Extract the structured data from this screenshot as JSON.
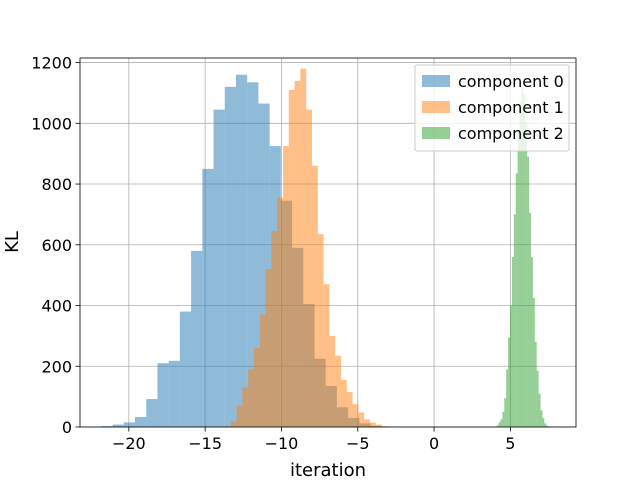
{
  "chart_data": {
    "type": "histogram",
    "xlabel": "iteration",
    "ylabel": "KL",
    "xlim": [
      -23.2,
      9.3
    ],
    "ylim": [
      0,
      1215
    ],
    "xticks": [
      -20,
      -15,
      -10,
      -5,
      0,
      5
    ],
    "yticks": [
      0,
      200,
      400,
      600,
      800,
      1000,
      1200
    ],
    "grid": true,
    "alpha": 0.5,
    "legend_position": "top-right",
    "series": [
      {
        "name": "component 0",
        "color": "#1f77b4",
        "bin_start": -21.8,
        "bin_width": 0.735,
        "counts": [
          3,
          8,
          15,
          33,
          92,
          210,
          218,
          380,
          580,
          850,
          1045,
          1120,
          1160,
          1135,
          1065,
          925,
          745,
          590,
          405,
          225,
          135,
          65,
          30,
          12,
          4
        ]
      },
      {
        "name": "component 1",
        "color": "#ff7f0e",
        "bin_start": -13.7,
        "bin_width": 0.38,
        "counts": [
          2,
          18,
          70,
          130,
          190,
          260,
          370,
          520,
          645,
          755,
          925,
          1110,
          1140,
          1180,
          1045,
          860,
          635,
          470,
          300,
          235,
          155,
          115,
          75,
          48,
          25,
          15,
          8,
          3
        ]
      },
      {
        "name": "component 2",
        "color": "#2ca02c",
        "bin_start": 4.1,
        "bin_width": 0.125,
        "counts": [
          5,
          15,
          25,
          50,
          95,
          190,
          295,
          400,
          560,
          700,
          835,
          985,
          1070,
          1120,
          1095,
          1005,
          890,
          705,
          560,
          425,
          280,
          185,
          110,
          55,
          30,
          12,
          5
        ]
      }
    ]
  }
}
